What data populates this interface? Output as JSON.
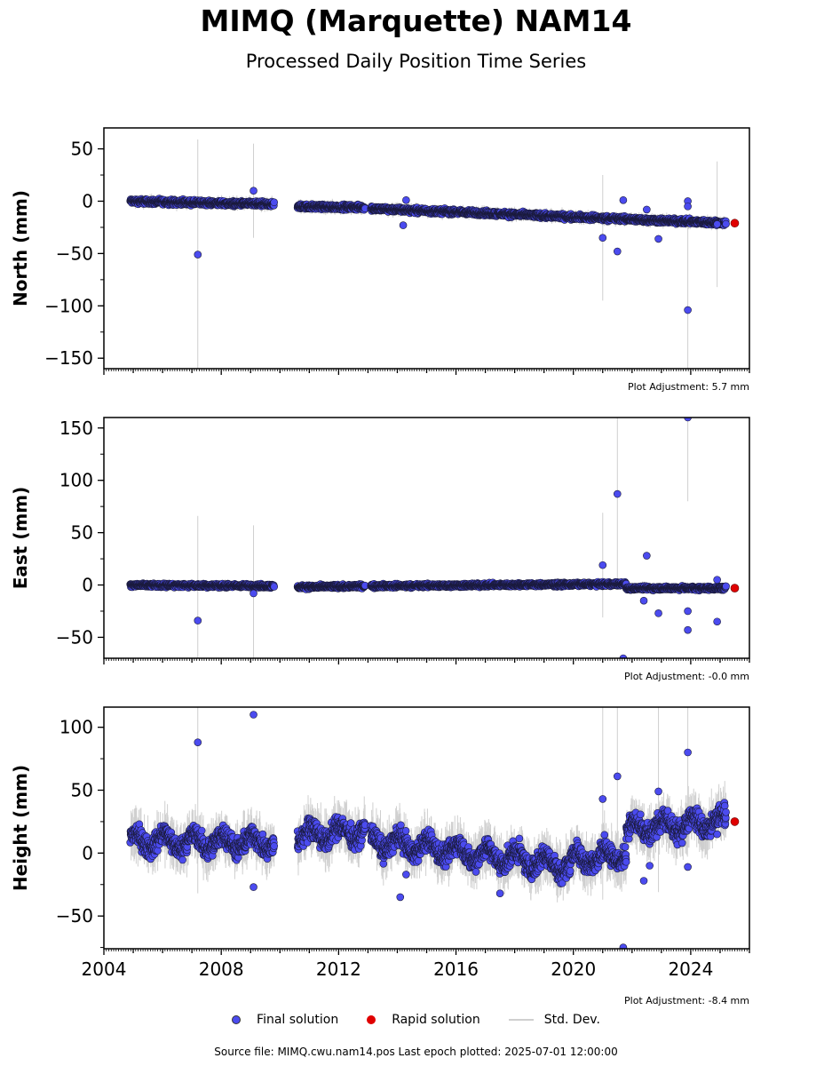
{
  "title": "MIMQ (Marquette) NAM14",
  "subtitle": "Processed Daily Position Time Series",
  "legend": {
    "final": "Final solution",
    "rapid": "Rapid solution",
    "std": "Std. Dev."
  },
  "colors": {
    "final": "#4b4bef",
    "rapid": "#e00000",
    "std": "#cfcfcf"
  },
  "source_text": "Source file: MIMQ.cwu.nam14.pos  Last epoch plotted: 2025-07-01 12:00:00",
  "chart_data": [
    {
      "type": "scatter",
      "ylabel": "North (mm)",
      "xlim": [
        2004.0,
        2026.0
      ],
      "ylim": [
        -160,
        70
      ],
      "yticks": [
        50,
        0,
        -50,
        -100,
        -150
      ],
      "yticklabels": [
        "50",
        "0",
        "−50",
        "−100",
        "−150"
      ],
      "adjustment_label": "Plot Adjustment: 5.7 mm",
      "trend": {
        "segments": [
          {
            "x": [
              2004.9,
              2009.8
            ],
            "y": [
              0,
              -3
            ]
          },
          {
            "x": [
              2010.6,
              2012.9
            ],
            "y": [
              -5,
              -6
            ]
          },
          {
            "x": [
              2013.1,
              2025.2
            ],
            "y": [
              -7,
              -21
            ]
          }
        ],
        "noise": 2.0
      },
      "outliers": [
        {
          "x": 2007.2,
          "y": -51,
          "err": 110
        },
        {
          "x": 2009.1,
          "y": 10,
          "err": 45
        },
        {
          "x": 2014.2,
          "y": -23
        },
        {
          "x": 2014.3,
          "y": 1
        },
        {
          "x": 2021.0,
          "y": -35,
          "err": 60
        },
        {
          "x": 2021.5,
          "y": -48
        },
        {
          "x": 2021.7,
          "y": 1
        },
        {
          "x": 2022.5,
          "y": -8
        },
        {
          "x": 2022.9,
          "y": -36
        },
        {
          "x": 2023.9,
          "y": -104,
          "err": 90
        },
        {
          "x": 2023.9,
          "y": 0
        },
        {
          "x": 2023.9,
          "y": -5
        },
        {
          "x": 2024.9,
          "y": -22,
          "err": 60
        }
      ],
      "rapid": [
        {
          "x": 2025.5,
          "y": -21
        }
      ]
    },
    {
      "type": "scatter",
      "ylabel": "East (mm)",
      "xlim": [
        2004.0,
        2026.0
      ],
      "ylim": [
        -70,
        160
      ],
      "yticks": [
        150,
        100,
        50,
        0,
        -50
      ],
      "yticklabels": [
        "150",
        "100",
        "50",
        "0",
        "−50"
      ],
      "adjustment_label": "Plot Adjustment: -0.0 mm",
      "trend": {
        "segments": [
          {
            "x": [
              2004.9,
              2009.8
            ],
            "y": [
              0,
              -1
            ]
          },
          {
            "x": [
              2010.6,
              2012.9
            ],
            "y": [
              -2,
              -1
            ]
          },
          {
            "x": [
              2013.1,
              2021.8
            ],
            "y": [
              -1,
              1
            ]
          },
          {
            "x": [
              2021.8,
              2025.2
            ],
            "y": [
              -3,
              -3
            ]
          }
        ],
        "noise": 1.5
      },
      "outliers": [
        {
          "x": 2007.2,
          "y": -34,
          "err": 100
        },
        {
          "x": 2009.1,
          "y": -8,
          "err": 65
        },
        {
          "x": 2021.0,
          "y": 19,
          "err": 50
        },
        {
          "x": 2021.5,
          "y": 87,
          "err": 90
        },
        {
          "x": 2021.7,
          "y": -70
        },
        {
          "x": 2022.4,
          "y": -15
        },
        {
          "x": 2022.5,
          "y": 28
        },
        {
          "x": 2022.9,
          "y": -27
        },
        {
          "x": 2023.9,
          "y": 160,
          "err": 80
        },
        {
          "x": 2023.9,
          "y": -25
        },
        {
          "x": 2023.9,
          "y": -43
        },
        {
          "x": 2024.9,
          "y": -35
        },
        {
          "x": 2024.9,
          "y": 5
        }
      ],
      "rapid": [
        {
          "x": 2025.5,
          "y": -3
        }
      ]
    },
    {
      "type": "scatter",
      "ylabel": "Height (mm)",
      "xlim": [
        2004.0,
        2026.0
      ],
      "ylim": [
        -76,
        116
      ],
      "yticks": [
        100,
        50,
        0,
        -50
      ],
      "yticklabels": [
        "100",
        "50",
        "0",
        "−50"
      ],
      "xticks": [
        2004,
        2008,
        2012,
        2016,
        2020,
        2024
      ],
      "xticklabels": [
        "2004",
        "2008",
        "2012",
        "2016",
        "2020",
        "2024"
      ],
      "adjustment_label": "Plot Adjustment: -8.4 mm",
      "trend": {
        "segments": [
          {
            "x": [
              2004.9,
              2009.8
            ],
            "y": [
              10,
              8
            ]
          },
          {
            "x": [
              2010.6,
              2012.9
            ],
            "y": [
              14,
              18
            ]
          },
          {
            "x": [
              2013.1,
              2019.9
            ],
            "y": [
              10,
              -10
            ]
          },
          {
            "x": [
              2019.9,
              2021.8
            ],
            "y": [
              -6,
              0
            ]
          },
          {
            "x": [
              2021.8,
              2025.2
            ],
            "y": [
              18,
              26
            ]
          }
        ],
        "noise": 7.0,
        "seasonal": 6.0
      },
      "outliers": [
        {
          "x": 2007.2,
          "y": 88,
          "err": 120
        },
        {
          "x": 2009.1,
          "y": 110
        },
        {
          "x": 2009.1,
          "y": -27
        },
        {
          "x": 2014.1,
          "y": -35
        },
        {
          "x": 2014.3,
          "y": -17
        },
        {
          "x": 2017.5,
          "y": -32
        },
        {
          "x": 2021.0,
          "y": 43,
          "err": 80
        },
        {
          "x": 2021.5,
          "y": 61,
          "err": 70
        },
        {
          "x": 2021.7,
          "y": -75
        },
        {
          "x": 2022.4,
          "y": -22
        },
        {
          "x": 2022.6,
          "y": -10
        },
        {
          "x": 2022.9,
          "y": 49,
          "err": 80
        },
        {
          "x": 2023.9,
          "y": 80,
          "err": 70
        },
        {
          "x": 2023.9,
          "y": -11
        },
        {
          "x": 2024.9,
          "y": 15
        }
      ],
      "rapid": [
        {
          "x": 2025.5,
          "y": 25
        }
      ]
    }
  ]
}
